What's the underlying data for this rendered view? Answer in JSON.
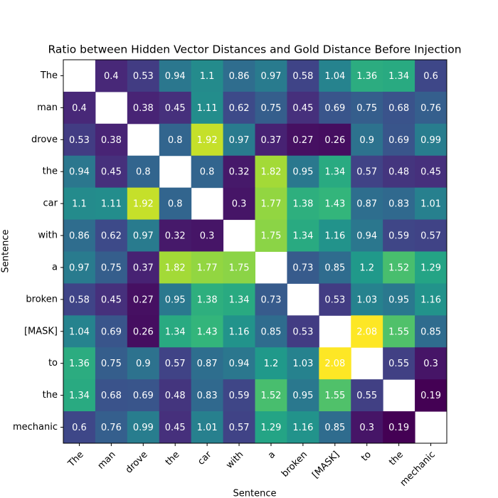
{
  "chart_data": {
    "type": "heatmap",
    "title": "Ratio between Hidden Vector Distances and Gold Distance Before Injection",
    "x_label": "Sentence",
    "y_label": "Sentence",
    "x_categories": [
      "The",
      "man",
      "drove",
      "the",
      "car",
      "with",
      "a",
      "broken",
      "[MASK]",
      "to",
      "the",
      "mechanic"
    ],
    "y_categories": [
      "The",
      "man",
      "drove",
      "the",
      "car",
      "with",
      "a",
      "broken",
      "[MASK]",
      "to",
      "the",
      "mechanic"
    ],
    "colormap": "viridis",
    "values": [
      [
        null,
        0.4,
        0.53,
        0.94,
        1.1,
        0.86,
        0.97,
        0.58,
        1.04,
        1.36,
        1.34,
        0.6
      ],
      [
        0.4,
        null,
        0.38,
        0.45,
        1.11,
        0.62,
        0.75,
        0.45,
        0.69,
        0.75,
        0.68,
        0.76
      ],
      [
        0.53,
        0.38,
        null,
        0.8,
        1.92,
        0.97,
        0.37,
        0.27,
        0.26,
        0.9,
        0.69,
        0.99
      ],
      [
        0.94,
        0.45,
        0.8,
        null,
        0.8,
        0.32,
        1.82,
        0.95,
        1.34,
        0.57,
        0.48,
        0.45
      ],
      [
        1.1,
        1.11,
        1.92,
        0.8,
        null,
        0.3,
        1.77,
        1.38,
        1.43,
        0.87,
        0.83,
        1.01
      ],
      [
        0.86,
        0.62,
        0.97,
        0.32,
        0.3,
        null,
        1.75,
        1.34,
        1.16,
        0.94,
        0.59,
        0.57
      ],
      [
        0.97,
        0.75,
        0.37,
        1.82,
        1.77,
        1.75,
        null,
        0.73,
        0.85,
        1.2,
        1.52,
        1.29
      ],
      [
        0.58,
        0.45,
        0.27,
        0.95,
        1.38,
        1.34,
        0.73,
        null,
        0.53,
        1.03,
        0.95,
        1.16
      ],
      [
        1.04,
        0.69,
        0.26,
        1.34,
        1.43,
        1.16,
        0.85,
        0.53,
        null,
        2.08,
        1.55,
        0.85
      ],
      [
        1.36,
        0.75,
        0.9,
        0.57,
        0.87,
        0.94,
        1.2,
        1.03,
        2.08,
        null,
        0.55,
        0.3
      ],
      [
        1.34,
        0.68,
        0.69,
        0.48,
        0.83,
        0.59,
        1.52,
        0.95,
        1.55,
        0.55,
        null,
        0.19
      ],
      [
        0.6,
        0.76,
        0.99,
        0.45,
        1.01,
        0.57,
        1.29,
        1.16,
        0.85,
        0.3,
        0.19,
        null
      ]
    ]
  }
}
